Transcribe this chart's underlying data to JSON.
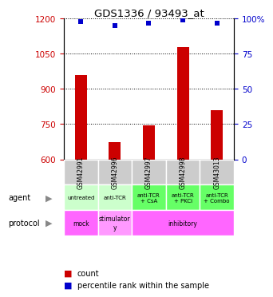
{
  "title": "GDS1336 / 93493_at",
  "samples": [
    "GSM42991",
    "GSM42996",
    "GSM42997",
    "GSM42998",
    "GSM43013"
  ],
  "counts": [
    960,
    672,
    745,
    1080,
    810
  ],
  "percentile_ranks": [
    98,
    95,
    97,
    99,
    97
  ],
  "ylim_left": [
    600,
    1200
  ],
  "ylim_right": [
    0,
    100
  ],
  "yticks_left": [
    600,
    750,
    900,
    1050,
    1200
  ],
  "yticks_right": [
    0,
    25,
    50,
    75,
    100
  ],
  "bar_color": "#cc0000",
  "square_color": "#0000cc",
  "agent_labels": [
    "untreated",
    "anti-TCR",
    "anti-TCR\n+ CsA",
    "anti-TCR\n+ PKCi",
    "anti-TCR\n+ Combo"
  ],
  "agent_color_light": "#ccffcc",
  "agent_color_bright": "#66ff66",
  "protocol_color_mock": "#ff66ff",
  "protocol_color_stim": "#ff99ff",
  "protocol_color_inhib": "#ff66ff",
  "sample_bg_color": "#cccccc",
  "n_samples": 5
}
